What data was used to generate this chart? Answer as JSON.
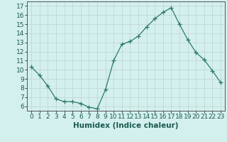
{
  "x": [
    0,
    1,
    2,
    3,
    4,
    5,
    6,
    7,
    8,
    9,
    10,
    11,
    12,
    13,
    14,
    15,
    16,
    17,
    18,
    19,
    20,
    21,
    22,
    23
  ],
  "y": [
    10.3,
    9.4,
    8.2,
    6.8,
    6.5,
    6.5,
    6.3,
    5.9,
    5.7,
    7.8,
    11.0,
    12.8,
    13.1,
    13.7,
    14.7,
    15.6,
    16.3,
    16.8,
    15.0,
    13.3,
    11.9,
    11.1,
    9.9,
    8.6
  ],
  "line_color": "#2d7a6a",
  "marker": "+",
  "marker_size": 4,
  "background_color": "#d4f0ee",
  "grid_color": "#c0d8d4",
  "xlabel": "Humidex (Indice chaleur)",
  "xlim": [
    -0.5,
    23.5
  ],
  "ylim": [
    5.5,
    17.5
  ],
  "yticks": [
    6,
    7,
    8,
    9,
    10,
    11,
    12,
    13,
    14,
    15,
    16,
    17
  ],
  "xticks": [
    0,
    1,
    2,
    3,
    4,
    5,
    6,
    7,
    8,
    9,
    10,
    11,
    12,
    13,
    14,
    15,
    16,
    17,
    18,
    19,
    20,
    21,
    22,
    23
  ],
  "tick_label_fontsize": 6.5,
  "xlabel_fontsize": 7.5,
  "label_color": "#1a5a50",
  "spine_color": "#555555",
  "linewidth": 0.9,
  "markeredgewidth": 0.9
}
